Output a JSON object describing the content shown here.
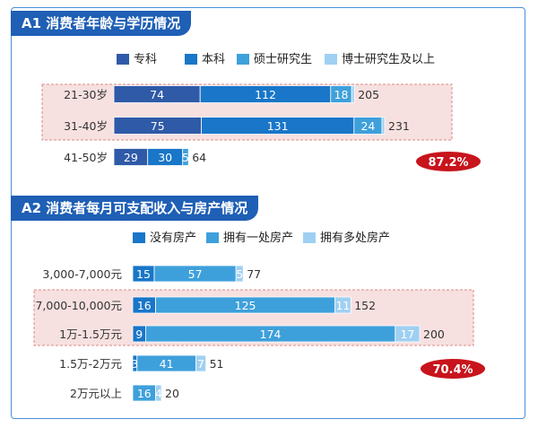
{
  "colors": {
    "title_bg": "#1f5fb5",
    "frame": "#4a8fd8",
    "highlight_fill": "#f7e0e0",
    "highlight_stroke": "#d88a8a",
    "badge": "#c8141c",
    "dark_blue": "#2f5aa8",
    "blue": "#1976c8",
    "mid_blue": "#3ea0db",
    "light_blue": "#9fd0f2"
  },
  "chart_data": [
    {
      "type": "bar",
      "orientation": "horizontal",
      "stacked": true,
      "title": "A1 消费者年龄与学历情况",
      "categories": [
        "21-30岁",
        "31-40岁",
        "41-50岁"
      ],
      "series": [
        {
          "name": "专科",
          "values": [
            74,
            75,
            29
          ],
          "color": "#2f5aa8"
        },
        {
          "name": "本科",
          "values": [
            112,
            131,
            30
          ],
          "color": "#1976c8"
        },
        {
          "name": "硕士研究生",
          "values": [
            18,
            24,
            5
          ],
          "color": "#3ea0db"
        },
        {
          "name": "博士研究生及以上",
          "values": [
            1,
            1,
            0
          ],
          "color": "#9fd0f2"
        }
      ],
      "totals": [
        205,
        231,
        64
      ],
      "highlight_rows": [
        0,
        1
      ],
      "badge": "87.2%",
      "legend": "top",
      "grid": false,
      "xlim": [
        0,
        240
      ]
    },
    {
      "type": "bar",
      "orientation": "horizontal",
      "stacked": true,
      "title": "A2 消费者每月可支配收入与房产情况",
      "categories": [
        "3,000-7,000元",
        "7,000-10,000元",
        "1万-1.5万元",
        "1.5万-2万元",
        "2万元以上"
      ],
      "series": [
        {
          "name": "没有房产",
          "values": [
            15,
            16,
            9,
            3,
            0
          ],
          "color": "#1976c8"
        },
        {
          "name": "拥有一处房产",
          "values": [
            57,
            125,
            174,
            41,
            16
          ],
          "color": "#3ea0db"
        },
        {
          "name": "拥有多处房产",
          "values": [
            5,
            11,
            17,
            7,
            4
          ],
          "color": "#9fd0f2"
        }
      ],
      "totals": [
        77,
        152,
        200,
        51,
        20
      ],
      "highlight_rows": [
        1,
        2
      ],
      "badge": "70.4%",
      "legend": "top",
      "grid": false,
      "xlim": [
        0,
        200
      ]
    }
  ]
}
